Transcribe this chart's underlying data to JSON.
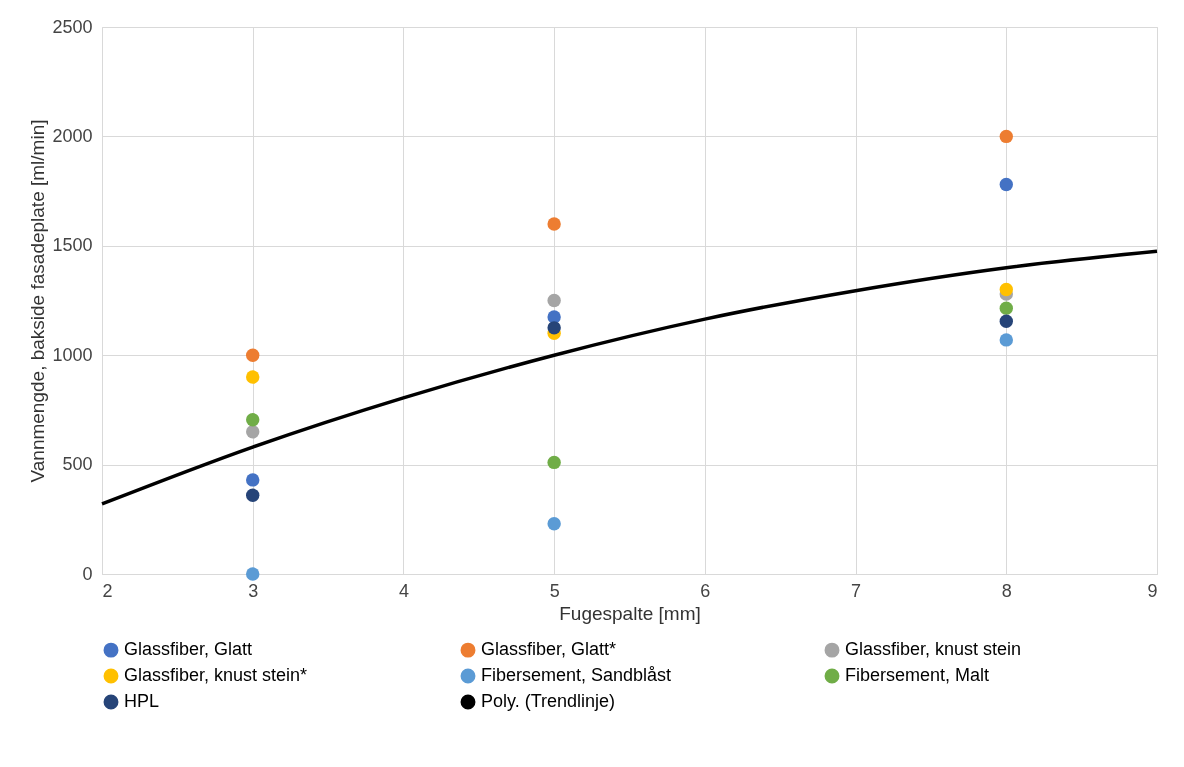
{
  "chart_data": {
    "type": "scatter",
    "xlabel": "Fugespalte [mm]",
    "ylabel": "Vannmengde, bakside fasadeplate [ml/min]",
    "x": [
      3,
      5,
      8
    ],
    "series": [
      {
        "name": "Glassfiber, Glatt",
        "color": "#4472c4",
        "values": [
          430,
          1175,
          1780
        ]
      },
      {
        "name": "Glassfiber, Glatt*",
        "color": "#ed7d31",
        "values": [
          1000,
          1600,
          2000
        ]
      },
      {
        "name": "Glassfiber, knust stein",
        "color": "#a5a5a5",
        "values": [
          650,
          1250,
          1280
        ]
      },
      {
        "name": "Glassfiber, knust stein*",
        "color": "#ffc000",
        "values": [
          900,
          1100,
          1300
        ]
      },
      {
        "name": "Fibersement, Sandblåst",
        "color": "#5b9bd5",
        "values": [
          0,
          230,
          1070
        ]
      },
      {
        "name": "Fibersement, Malt",
        "color": "#70ad47",
        "values": [
          705,
          510,
          1215
        ]
      },
      {
        "name": "HPL",
        "color": "#264478",
        "values": [
          360,
          1125,
          1155
        ]
      },
      {
        "name": "Poly. (Trendlinje)",
        "type": "line",
        "marker": "none",
        "color": "#000000",
        "x": [
          2,
          3,
          4,
          5,
          6,
          7,
          8,
          9
        ],
        "values": [
          320,
          580,
          805,
          1000,
          1165,
          1295,
          1400,
          1475
        ]
      }
    ],
    "xlim": [
      2,
      9
    ],
    "xticks": [
      2,
      3,
      4,
      5,
      6,
      7,
      8,
      9
    ],
    "ylim": [
      0,
      2500
    ],
    "yticks": [
      0,
      500,
      1000,
      1500,
      2000,
      2500
    ],
    "grid": true,
    "legend": "bottom",
    "marker": "circle"
  }
}
